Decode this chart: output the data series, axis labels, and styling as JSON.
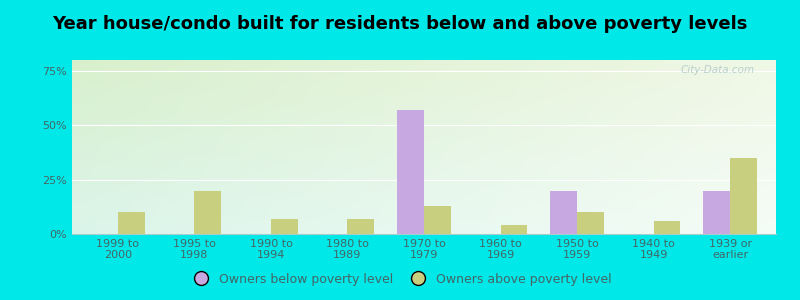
{
  "title": "Year house/condo built for residents below and above poverty levels",
  "categories": [
    "1999 to\n2000",
    "1995 to\n1998",
    "1990 to\n1994",
    "1980 to\n1989",
    "1970 to\n1979",
    "1960 to\n1969",
    "1950 to\n1959",
    "1940 to\n1949",
    "1939 or\nearlier"
  ],
  "below_poverty": [
    0.0,
    0.0,
    0.0,
    0.0,
    57.0,
    0.0,
    20.0,
    0.0,
    20.0
  ],
  "above_poverty": [
    10.0,
    20.0,
    7.0,
    7.0,
    13.0,
    4.0,
    10.0,
    6.0,
    35.0
  ],
  "below_color": "#c8a8e0",
  "above_color": "#c8d080",
  "ylim": [
    0,
    80
  ],
  "yticks": [
    0,
    25,
    50,
    75
  ],
  "ytick_labels": [
    "0%",
    "25%",
    "50%",
    "75%"
  ],
  "bar_width": 0.35,
  "bg_top_left": "#daf5f0",
  "bg_top_right": "#f0f8f0",
  "bg_bottom_left": "#e8f5e8",
  "bg_bottom_right": "#f5fdf5",
  "outer_background": "#00e8e8",
  "legend_below": "Owners below poverty level",
  "legend_above": "Owners above poverty level",
  "title_fontsize": 13,
  "tick_fontsize": 8,
  "legend_fontsize": 9,
  "watermark": "City-Data.com"
}
